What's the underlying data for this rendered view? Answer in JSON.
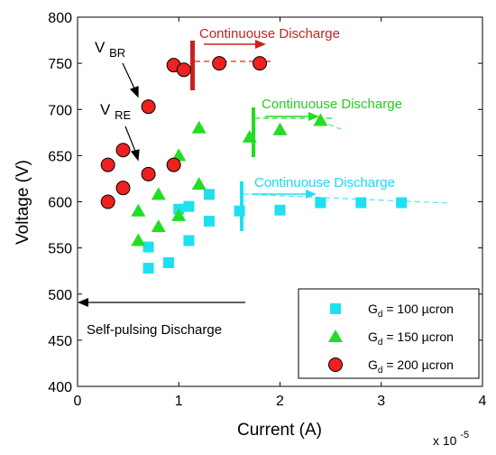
{
  "chart_data": {
    "type": "scatter",
    "xlabel": "Current (A)",
    "ylabel": "Voltage (V)",
    "x_multiplier_label": "x 10",
    "x_multiplier_exponent": "-5",
    "xlim": [
      0,
      4
    ],
    "ylim": [
      400,
      800
    ],
    "xticks": [
      0,
      1,
      2,
      3,
      4
    ],
    "yticks": [
      400,
      450,
      500,
      550,
      600,
      650,
      700,
      750,
      800
    ],
    "grid": false,
    "legend_position": "bottom-right",
    "series": [
      {
        "label_main": "G",
        "label_sub": "d",
        "label_rest": " = 100 µcron",
        "marker": "square",
        "color": "#1ee0f0",
        "points": [
          [
            0.7,
            528
          ],
          [
            0.9,
            534
          ],
          [
            0.7,
            551
          ],
          [
            1.1,
            558
          ],
          [
            1.3,
            579
          ],
          [
            1.6,
            590
          ],
          [
            2.0,
            591
          ],
          [
            1.0,
            592
          ],
          [
            1.1,
            595
          ],
          [
            1.3,
            608
          ],
          [
            2.4,
            599
          ],
          [
            2.8,
            599
          ],
          [
            3.2,
            599
          ]
        ]
      },
      {
        "label_main": "G",
        "label_sub": "d",
        "label_rest": " = 150 µcron",
        "marker": "triangle",
        "color": "#22dd22",
        "points": [
          [
            0.6,
            558
          ],
          [
            0.8,
            573
          ],
          [
            1.0,
            585
          ],
          [
            0.6,
            590
          ],
          [
            0.8,
            608
          ],
          [
            1.2,
            619
          ],
          [
            1.0,
            650
          ],
          [
            1.7,
            670
          ],
          [
            1.2,
            680
          ],
          [
            2.0,
            678
          ],
          [
            2.4,
            688
          ]
        ]
      },
      {
        "label_main": "G",
        "label_sub": "d",
        "label_rest": " = 200 µcron",
        "marker": "circle",
        "color": "#ee2020",
        "points": [
          [
            0.3,
            600
          ],
          [
            0.45,
            615
          ],
          [
            0.3,
            640
          ],
          [
            0.45,
            656
          ],
          [
            0.7,
            630
          ],
          [
            0.95,
            640
          ],
          [
            0.7,
            703
          ],
          [
            0.95,
            748
          ],
          [
            1.05,
            743
          ],
          [
            1.4,
            750
          ],
          [
            1.8,
            750
          ]
        ]
      }
    ],
    "annotations": {
      "self_pulsing": "Self-pulsing Discharge",
      "cont_red": "Continuouse Discharge",
      "cont_green": "Continuouse Discharge",
      "cont_cyan": "Continuouse Discharge",
      "vbr_main": "V",
      "vbr_sub": "BR",
      "vre_main": "V",
      "vre_sub": "RE"
    }
  }
}
